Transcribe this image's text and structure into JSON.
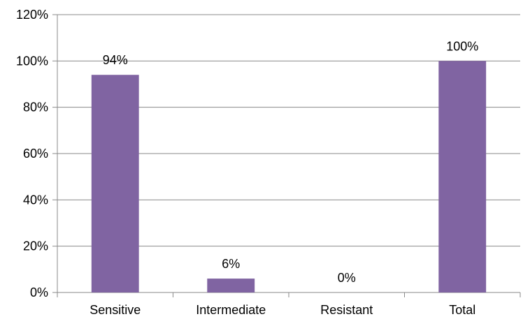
{
  "chart_data": {
    "type": "bar",
    "categories": [
      "Sensitive",
      "Intermediate",
      "Resistant",
      "Total"
    ],
    "values": [
      94,
      6,
      0,
      100
    ],
    "data_labels": [
      "94%",
      "6%",
      "0%",
      "100%"
    ],
    "y_ticks": [
      0,
      20,
      40,
      60,
      80,
      100,
      120
    ],
    "y_tick_labels": [
      "0%",
      "20%",
      "40%",
      "60%",
      "80%",
      "100%",
      "120%"
    ],
    "ylim": [
      0,
      120
    ],
    "grid": true,
    "bar_color": "#8064a2",
    "title": "",
    "xlabel": "",
    "ylabel": ""
  }
}
